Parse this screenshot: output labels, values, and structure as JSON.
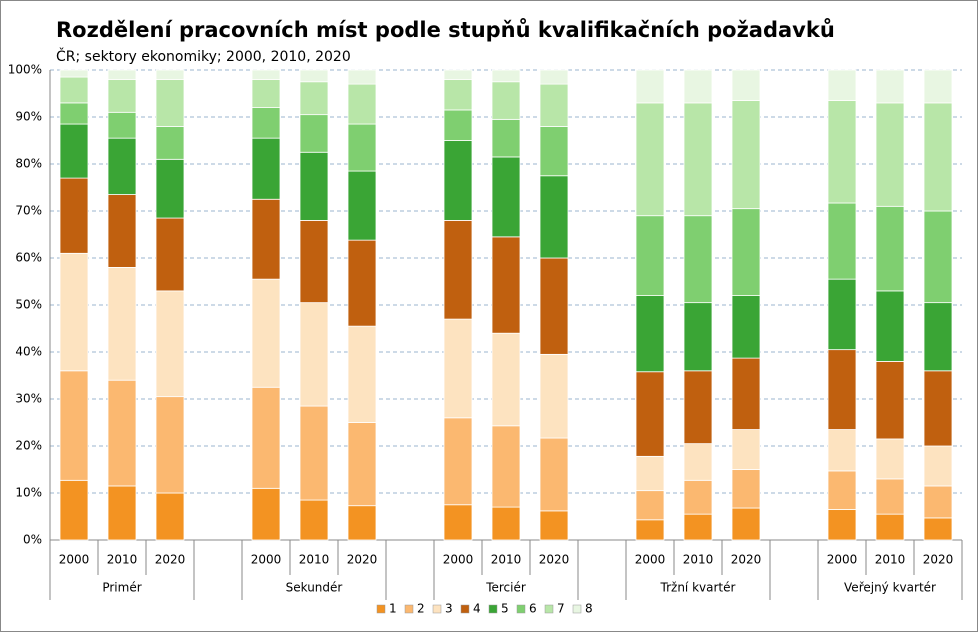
{
  "chart_data": {
    "type": "stacked-bar",
    "title": "Rozdělení pracovních míst podle stupňů kvalifikačních požadavků",
    "subtitle": "ČR; sektory ekonomiky; 2000, 2010, 2020",
    "groups": [
      "Primér",
      "Sekundér",
      "Terciér",
      "Tržní kvartér",
      "Veřejný kvartér"
    ],
    "categories": [
      "2000",
      "2010",
      "2020",
      "2000",
      "2010",
      "2020",
      "2000",
      "2010",
      "2020",
      "2000",
      "2010",
      "2020",
      "2000",
      "2010",
      "2020"
    ],
    "series": [
      {
        "name": "1",
        "color": "#f39322",
        "values": [
          12.7,
          11.5,
          10,
          11,
          8.5,
          7.3,
          7.5,
          7,
          6.2,
          4.3,
          5.5,
          6.8,
          6.5,
          5.5,
          4.7
        ]
      },
      {
        "name": "2",
        "color": "#fbb870",
        "values": [
          23.3,
          22.5,
          20.5,
          21.5,
          20,
          17.7,
          18.5,
          17.3,
          15.5,
          6.2,
          7.2,
          8.2,
          8.2,
          7.5,
          6.8
        ]
      },
      {
        "name": "3",
        "color": "#fde3c0",
        "values": [
          25,
          24,
          22.5,
          23,
          22,
          20.5,
          21,
          19.7,
          17.8,
          7.3,
          7.8,
          8.5,
          8.8,
          8.5,
          8.5
        ]
      },
      {
        "name": "4",
        "color": "#c0600f",
        "values": [
          16,
          15.5,
          15.5,
          17,
          17.5,
          18.3,
          21,
          20.5,
          20.5,
          18,
          15.5,
          15.2,
          17,
          16.5,
          16
        ]
      },
      {
        "name": "5",
        "color": "#3aa535",
        "values": [
          11.5,
          12,
          12.5,
          13,
          14.5,
          14.7,
          17,
          17,
          17.5,
          16.2,
          14.5,
          13.3,
          15,
          15,
          14.5
        ]
      },
      {
        "name": "6",
        "color": "#7fcf70",
        "values": [
          4.5,
          5.5,
          7,
          6.5,
          8,
          10,
          6.5,
          8,
          10.5,
          17,
          18.5,
          18.5,
          16.2,
          18,
          19.5
        ]
      },
      {
        "name": "7",
        "color": "#b8e6a8",
        "values": [
          5.5,
          7,
          10,
          6,
          7,
          8.5,
          6.5,
          8,
          9,
          24,
          24,
          23,
          21.8,
          22,
          23
        ]
      },
      {
        "name": "8",
        "color": "#e8f6e2",
        "values": [
          1.5,
          2,
          2,
          2,
          2.5,
          3,
          2,
          2.5,
          3,
          7,
          7,
          6.5,
          6.5,
          7,
          7
        ]
      }
    ],
    "ylim": [
      0,
      100
    ],
    "yticks": [
      {
        "value": 0,
        "label": "0%"
      },
      {
        "value": 10,
        "label": "10%"
      },
      {
        "value": 20,
        "label": "20%"
      },
      {
        "value": 30,
        "label": "30%"
      },
      {
        "value": 40,
        "label": "40%"
      },
      {
        "value": 50,
        "label": "50%"
      },
      {
        "value": 60,
        "label": "60%"
      },
      {
        "value": 70,
        "label": "70%"
      },
      {
        "value": 80,
        "label": "80%"
      },
      {
        "value": 90,
        "label": "90%"
      },
      {
        "value": 100,
        "label": "100%"
      }
    ],
    "grid": true,
    "legend": "bottom"
  }
}
